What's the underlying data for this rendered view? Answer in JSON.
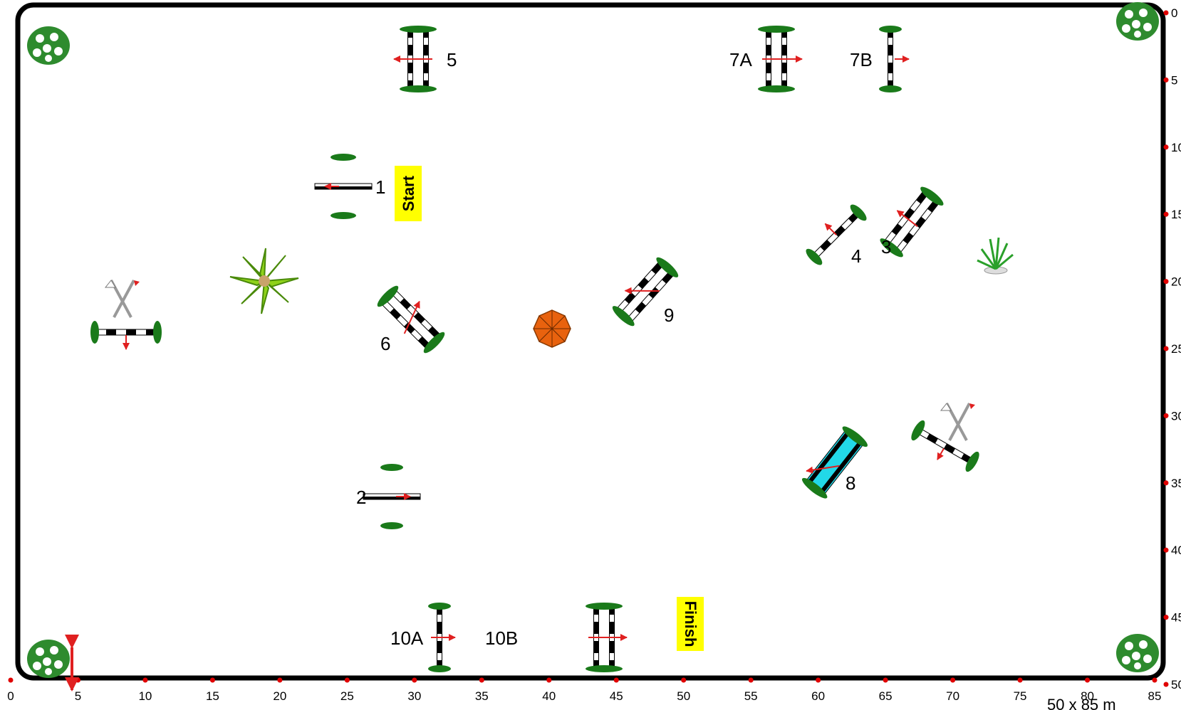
{
  "arena": {
    "size_label": "50 x 85 m",
    "width_m": 85,
    "height_m": 50
  },
  "axes": {
    "x_ticks": [
      "0",
      "5",
      "10",
      "15",
      "20",
      "25",
      "30",
      "35",
      "40",
      "45",
      "50",
      "55",
      "60",
      "65",
      "70",
      "75",
      "80",
      "85"
    ],
    "y_ticks": [
      "0",
      "5",
      "10",
      "15",
      "20",
      "25",
      "30",
      "35",
      "40",
      "45",
      "50"
    ]
  },
  "markers": {
    "start": "Start",
    "finish": "Finish"
  },
  "jumps": [
    {
      "id": "1",
      "label": "1"
    },
    {
      "id": "2",
      "label": "2"
    },
    {
      "id": "3",
      "label": "3"
    },
    {
      "id": "4",
      "label": "4"
    },
    {
      "id": "5",
      "label": "5"
    },
    {
      "id": "6",
      "label": "6"
    },
    {
      "id": "7a",
      "label": "7A"
    },
    {
      "id": "7b",
      "label": "7B"
    },
    {
      "id": "8",
      "label": "8"
    },
    {
      "id": "9",
      "label": "9"
    },
    {
      "id": "10a",
      "label": "10A"
    },
    {
      "id": "10b",
      "label": "10B"
    }
  ],
  "colors": {
    "border": "#000000",
    "standard": "#1a7a1a",
    "arrow": "#e02020",
    "tick": "#e00000",
    "marker": "#ffff00",
    "water": "#22d8e8",
    "umbrella": "#e8620e"
  }
}
